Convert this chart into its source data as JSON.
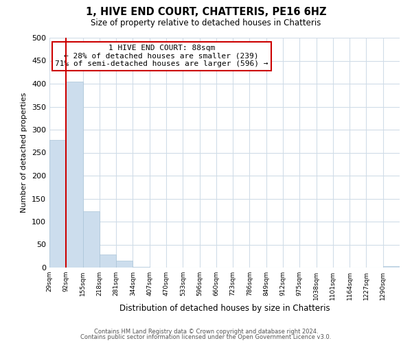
{
  "title": "1, HIVE END COURT, CHATTERIS, PE16 6HZ",
  "subtitle": "Size of property relative to detached houses in Chatteris",
  "xlabel": "Distribution of detached houses by size in Chatteris",
  "ylabel": "Number of detached properties",
  "bar_color": "#ccdded",
  "bar_edge_color": "#aac4d8",
  "grid_color": "#d0dce8",
  "annotation_box_color": "#cc0000",
  "vline_color": "#cc0000",
  "bin_labels": [
    "29sqm",
    "92sqm",
    "155sqm",
    "218sqm",
    "281sqm",
    "344sqm",
    "407sqm",
    "470sqm",
    "533sqm",
    "596sqm",
    "660sqm",
    "723sqm",
    "786sqm",
    "849sqm",
    "912sqm",
    "975sqm",
    "1038sqm",
    "1101sqm",
    "1164sqm",
    "1227sqm",
    "1290sqm"
  ],
  "bar_heights": [
    277,
    405,
    122,
    28,
    15,
    2,
    0,
    0,
    0,
    0,
    0,
    0,
    0,
    0,
    0,
    0,
    0,
    0,
    0,
    0,
    3
  ],
  "ylim": [
    0,
    500
  ],
  "yticks": [
    0,
    50,
    100,
    150,
    200,
    250,
    300,
    350,
    400,
    450,
    500
  ],
  "property_size": "88sqm",
  "property_name": "1 HIVE END COURT",
  "pct_smaller": 28,
  "n_smaller": 239,
  "pct_larger_semi": 71,
  "n_larger_semi": 596,
  "vline_x": 1,
  "footer_line1": "Contains HM Land Registry data © Crown copyright and database right 2024.",
  "footer_line2": "Contains public sector information licensed under the Open Government Licence v3.0."
}
